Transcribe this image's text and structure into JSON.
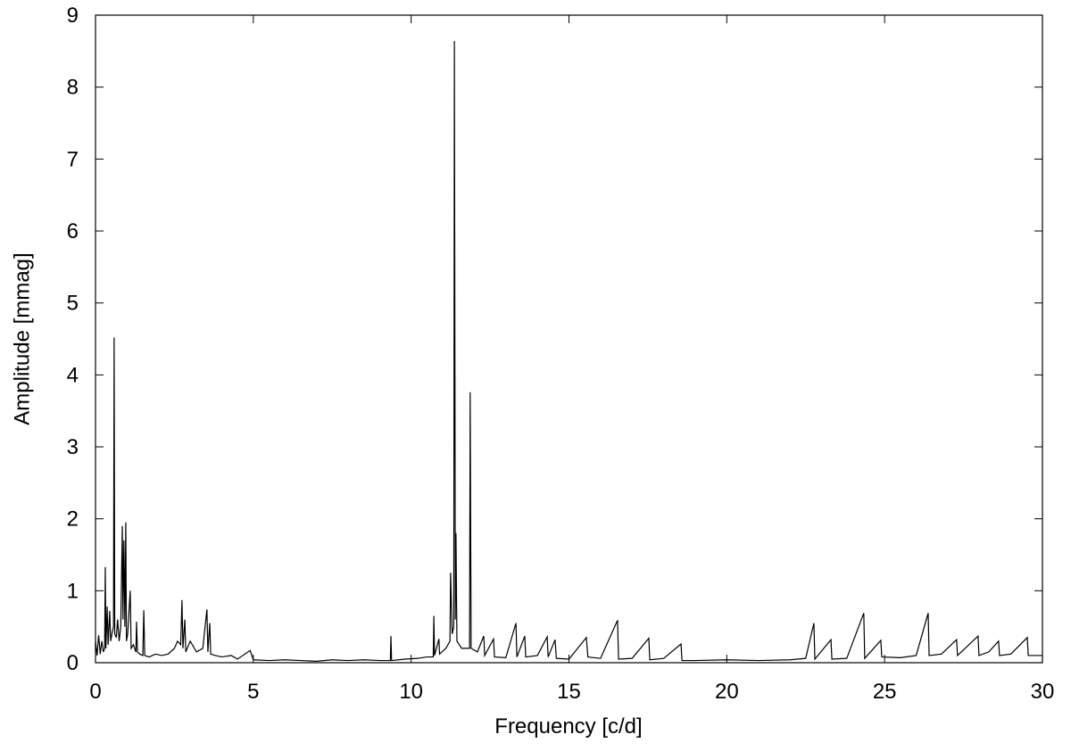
{
  "chart_data": {
    "type": "line",
    "xlabel": "Frequency [c/d]",
    "ylabel": "Amplitude [mmag]",
    "xlim": [
      0,
      30
    ],
    "ylim": [
      0,
      9
    ],
    "xticks": [
      0,
      5,
      10,
      15,
      20,
      25,
      30
    ],
    "yticks": [
      0,
      1,
      2,
      3,
      4,
      5,
      6,
      7,
      8,
      9
    ],
    "color": "#000000",
    "x": [
      0,
      0.05,
      0.1,
      0.15,
      0.2,
      0.25,
      0.29,
      0.31,
      0.33,
      0.37,
      0.4,
      0.45,
      0.48,
      0.52,
      0.57,
      0.59,
      0.61,
      0.66,
      0.7,
      0.75,
      0.8,
      0.85,
      0.87,
      0.9,
      0.93,
      0.96,
      0.98,
      1.02,
      1.1,
      1.13,
      1.2,
      1.28,
      1.3,
      1.33,
      1.4,
      1.5,
      1.53,
      1.56,
      1.7,
      1.9,
      2.1,
      2.3,
      2.5,
      2.6,
      2.7,
      2.74,
      2.77,
      2.83,
      2.86,
      3.0,
      3.2,
      3.4,
      3.53,
      3.56,
      3.62,
      3.65,
      3.8,
      4.0,
      4.3,
      4.5,
      4.9,
      5.0,
      5.5,
      6.0,
      6.5,
      7.0,
      7.5,
      8.0,
      8.5,
      9.0,
      9.34,
      9.36,
      9.38,
      9.8,
      10.2,
      10.5,
      10.7,
      10.72,
      10.74,
      10.88,
      10.9,
      11.1,
      11.23,
      11.25,
      11.3,
      11.35,
      11.37,
      11.4,
      11.42,
      11.45,
      11.6,
      11.85,
      11.87,
      11.9,
      12.1,
      12.3,
      12.33,
      12.61,
      12.64,
      13.0,
      13.32,
      13.35,
      13.6,
      13.63,
      14.0,
      14.31,
      14.34,
      14.56,
      14.6,
      15.0,
      15.55,
      15.6,
      16.0,
      16.54,
      16.57,
      17.0,
      17.53,
      17.56,
      18.0,
      18.55,
      18.58,
      19.0,
      20.0,
      21.0,
      22.0,
      22.5,
      22.76,
      22.79,
      23.3,
      23.33,
      23.8,
      24.34,
      24.37,
      24.88,
      24.91,
      25.5,
      26.0,
      26.38,
      26.41,
      26.8,
      27.28,
      27.31,
      27.96,
      27.99,
      28.3,
      28.61,
      28.64,
      29.0,
      29.52,
      29.55,
      30.0
    ],
    "values": [
      0.3,
      0.1,
      0.38,
      0.12,
      0.3,
      0.15,
      0.2,
      1.33,
      0.2,
      0.78,
      0.25,
      0.72,
      0.3,
      0.4,
      0.5,
      4.52,
      0.4,
      0.35,
      0.6,
      0.3,
      0.5,
      1.9,
      0.6,
      1.7,
      0.5,
      1.95,
      0.3,
      0.4,
      1.0,
      0.2,
      0.25,
      0.15,
      0.57,
      0.15,
      0.12,
      0.1,
      0.73,
      0.1,
      0.08,
      0.12,
      0.1,
      0.12,
      0.2,
      0.3,
      0.25,
      0.87,
      0.2,
      0.6,
      0.15,
      0.3,
      0.15,
      0.2,
      0.74,
      0.15,
      0.55,
      0.12,
      0.1,
      0.08,
      0.1,
      0.05,
      0.17,
      0.04,
      0.03,
      0.04,
      0.03,
      0.02,
      0.04,
      0.03,
      0.04,
      0.03,
      0.03,
      0.37,
      0.03,
      0.05,
      0.06,
      0.08,
      0.08,
      0.65,
      0.1,
      0.33,
      0.12,
      0.2,
      0.3,
      1.25,
      0.4,
      0.5,
      8.64,
      0.6,
      1.8,
      0.3,
      0.2,
      0.2,
      3.76,
      0.2,
      0.15,
      0.37,
      0.1,
      0.33,
      0.08,
      0.07,
      0.55,
      0.08,
      0.37,
      0.08,
      0.1,
      0.36,
      0.08,
      0.32,
      0.06,
      0.05,
      0.35,
      0.08,
      0.06,
      0.59,
      0.05,
      0.06,
      0.34,
      0.04,
      0.06,
      0.26,
      0.03,
      0.03,
      0.04,
      0.03,
      0.04,
      0.06,
      0.55,
      0.05,
      0.32,
      0.05,
      0.06,
      0.69,
      0.06,
      0.31,
      0.08,
      0.07,
      0.1,
      0.69,
      0.1,
      0.12,
      0.32,
      0.1,
      0.37,
      0.1,
      0.15,
      0.3,
      0.1,
      0.12,
      0.35,
      0.1,
      0.1
    ]
  }
}
